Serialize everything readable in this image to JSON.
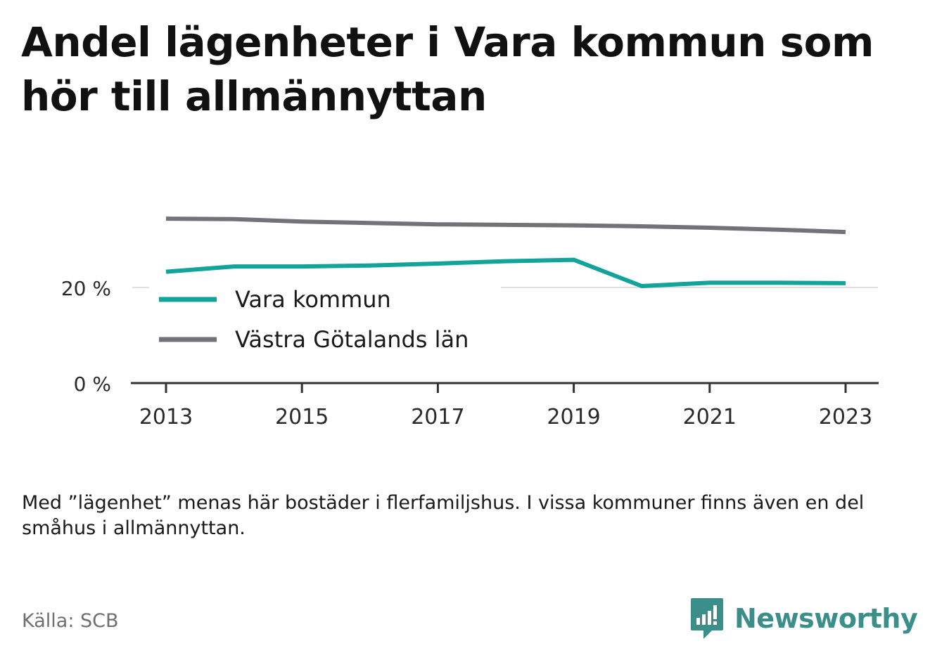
{
  "title": "Andel lägenheter i Vara kommun som hör till allmännyttan",
  "note": "Med ”lägenhet” menas här bostäder i flerfamiljshus. I vissa kommuner finns även en del småhus i allmännyttan.",
  "source": "Källa: SCB",
  "brand": {
    "name": "Newsworthy",
    "icon": "newsworthy-logo-icon",
    "color": "#3a8f8a"
  },
  "chart_data": {
    "type": "line",
    "x": [
      2013,
      2014,
      2015,
      2016,
      2017,
      2018,
      2019,
      2020,
      2021,
      2022,
      2023
    ],
    "x_tick_labels": [
      "2013",
      "2015",
      "2017",
      "2019",
      "2021",
      "2023"
    ],
    "y_tick_labels": [
      "0 %",
      "20 %"
    ],
    "y_ticks": [
      0,
      20
    ],
    "ylim": [
      0,
      34.5
    ],
    "grid": "horizontal at 20",
    "legend_position": "inside, lower-left",
    "series": [
      {
        "name": "Vara kommun",
        "color": "#12a39a",
        "values": [
          23.3,
          24.4,
          24.4,
          24.6,
          25.0,
          25.5,
          25.8,
          20.3,
          21.0,
          21.0,
          20.9
        ]
      },
      {
        "name": "Västra Götalands län",
        "color": "#727278",
        "values": [
          34.4,
          34.3,
          33.8,
          33.5,
          33.2,
          33.1,
          33.0,
          32.8,
          32.5,
          32.1,
          31.6
        ]
      }
    ]
  }
}
